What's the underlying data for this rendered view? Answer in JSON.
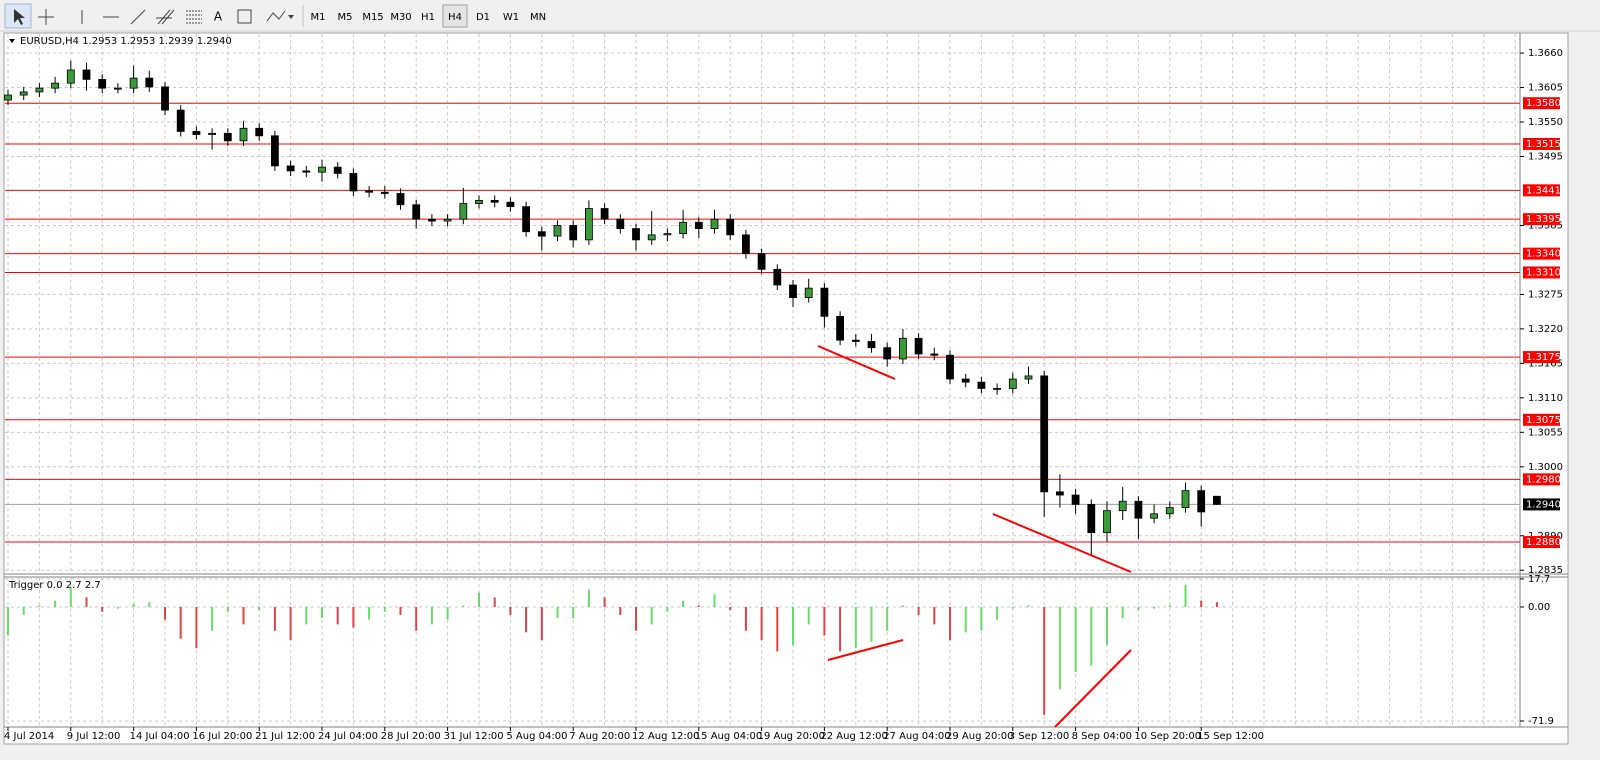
{
  "toolbar": {
    "timeframes": [
      "M1",
      "M5",
      "M15",
      "M30",
      "H1",
      "H4",
      "D1",
      "W1",
      "MN"
    ],
    "active": "H4"
  },
  "chart_data": [
    {
      "type": "candlestick",
      "title": "EURUSD,H4 1.2953 1.2953 1.2939 1.2940",
      "categories": [
        "4 Jul 2014",
        null,
        null,
        null,
        "9 Jul 12:00",
        null,
        null,
        null,
        "14 Jul 04:00",
        null,
        null,
        null,
        "16 Jul 20:00",
        null,
        null,
        null,
        "21 Jul 12:00",
        null,
        null,
        null,
        "24 Jul 04:00",
        null,
        null,
        null,
        "28 Jul 20:00",
        null,
        null,
        null,
        "31 Jul 12:00",
        null,
        null,
        null,
        "5 Aug 04:00",
        null,
        null,
        null,
        "7 Aug 20:00",
        null,
        null,
        null,
        "12 Aug 12:00",
        null,
        null,
        null,
        "15 Aug 04:00",
        null,
        null,
        null,
        "19 Aug 20:00",
        null,
        null,
        null,
        "22 Aug 12:00",
        null,
        null,
        null,
        "27 Aug 04:00",
        null,
        null,
        null,
        "29 Aug 20:00",
        null,
        null,
        null,
        "3 Sep 12:00",
        null,
        null,
        null,
        "8 Sep 04:00",
        null,
        null,
        null,
        "10 Sep 20:00",
        null,
        null,
        null,
        "15 Sep 12:00",
        null
      ],
      "open": [
        1.3585,
        1.3593,
        1.3598,
        1.3604,
        1.3612,
        1.3633,
        1.3618,
        1.3604,
        1.3604,
        1.362,
        1.3606,
        1.3569,
        1.3535,
        1.353,
        1.3532,
        1.352,
        1.354,
        1.3528,
        1.348,
        1.3472,
        1.347,
        1.3478,
        1.3468,
        1.344,
        1.3438,
        1.3436,
        1.3418,
        1.3395,
        1.3392,
        1.3395,
        1.342,
        1.3425,
        1.3422,
        1.3415,
        1.3375,
        1.3368,
        1.3385,
        1.3362,
        1.3412,
        1.3395,
        1.338,
        1.3362,
        1.337,
        1.3372,
        1.339,
        1.338,
        1.3395,
        1.337,
        1.334,
        1.3315,
        1.329,
        1.327,
        1.3285,
        1.324,
        1.3202,
        1.32,
        1.319,
        1.3172,
        1.3205,
        1.318,
        1.3178,
        1.314,
        1.3135,
        1.3125,
        1.3125,
        1.314,
        1.3145,
        1.296,
        1.2955,
        1.294,
        1.2895,
        1.293,
        1.2945,
        1.2918,
        1.2925,
        1.2935,
        1.2962,
        1.2953
      ],
      "high": [
        1.3601,
        1.3606,
        1.3612,
        1.3622,
        1.3648,
        1.3645,
        1.3626,
        1.3612,
        1.364,
        1.3632,
        1.3614,
        1.3577,
        1.3543,
        1.354,
        1.354,
        1.3552,
        1.3548,
        1.3536,
        1.3488,
        1.348,
        1.349,
        1.3486,
        1.3476,
        1.3448,
        1.3448,
        1.3444,
        1.3426,
        1.3403,
        1.3403,
        1.3445,
        1.3433,
        1.3433,
        1.343,
        1.3423,
        1.3383,
        1.3393,
        1.3393,
        1.3425,
        1.342,
        1.3403,
        1.3388,
        1.3408,
        1.338,
        1.341,
        1.3398,
        1.341,
        1.3403,
        1.3378,
        1.3348,
        1.3323,
        1.3298,
        1.33,
        1.3293,
        1.3248,
        1.3212,
        1.3212,
        1.3198,
        1.322,
        1.3213,
        1.319,
        1.3186,
        1.3148,
        1.3143,
        1.3133,
        1.315,
        1.316,
        1.3153,
        1.2988,
        1.2965,
        1.2948,
        1.2945,
        1.2968,
        1.2953,
        1.294,
        1.2945,
        1.2975,
        1.297,
        1.2953
      ],
      "low": [
        1.3577,
        1.3585,
        1.359,
        1.3596,
        1.3604,
        1.36,
        1.3596,
        1.3596,
        1.3596,
        1.3598,
        1.3561,
        1.3527,
        1.3522,
        1.3506,
        1.3512,
        1.3512,
        1.352,
        1.3472,
        1.3464,
        1.3462,
        1.3455,
        1.346,
        1.3432,
        1.343,
        1.3428,
        1.341,
        1.338,
        1.3384,
        1.3384,
        1.3387,
        1.3412,
        1.3414,
        1.3407,
        1.3367,
        1.3345,
        1.336,
        1.335,
        1.3354,
        1.3387,
        1.3372,
        1.3345,
        1.3354,
        1.336,
        1.3364,
        1.3365,
        1.3372,
        1.3362,
        1.3332,
        1.3307,
        1.3282,
        1.3255,
        1.3262,
        1.3222,
        1.3194,
        1.3192,
        1.3182,
        1.316,
        1.3164,
        1.3172,
        1.317,
        1.3132,
        1.3127,
        1.3117,
        1.3115,
        1.3117,
        1.3132,
        1.292,
        1.2935,
        1.2925,
        1.2858,
        1.288,
        1.2915,
        1.2885,
        1.291,
        1.2917,
        1.2927,
        1.2905,
        1.2939
      ],
      "close": [
        1.3593,
        1.3598,
        1.3604,
        1.3612,
        1.3633,
        1.3618,
        1.3604,
        1.3604,
        1.362,
        1.3606,
        1.3569,
        1.3535,
        1.353,
        1.3532,
        1.352,
        1.354,
        1.3528,
        1.348,
        1.3472,
        1.347,
        1.3478,
        1.3468,
        1.344,
        1.3438,
        1.3436,
        1.3418,
        1.3395,
        1.3392,
        1.3395,
        1.342,
        1.3425,
        1.3422,
        1.3415,
        1.3375,
        1.3368,
        1.3385,
        1.3362,
        1.3412,
        1.3395,
        1.338,
        1.3362,
        1.337,
        1.3372,
        1.339,
        1.338,
        1.3395,
        1.337,
        1.334,
        1.3315,
        1.329,
        1.327,
        1.3285,
        1.324,
        1.3202,
        1.32,
        1.319,
        1.3172,
        1.3205,
        1.318,
        1.3178,
        1.314,
        1.3135,
        1.3125,
        1.3125,
        1.314,
        1.3145,
        1.296,
        1.2955,
        1.294,
        1.2895,
        1.293,
        1.2945,
        1.2918,
        1.2925,
        1.2935,
        1.2962,
        1.2928,
        1.294
      ],
      "bull_color": "#3a9a3a",
      "bear_color": "#000000",
      "ylim": [
        1.2829,
        1.3692
      ],
      "yticks": [
        {
          "value": 1.366,
          "label": "1.3660"
        },
        {
          "value": 1.3605,
          "label": "1.3605"
        },
        {
          "value": 1.355,
          "label": "1.3550"
        },
        {
          "value": 1.3495,
          "label": "1.3495"
        },
        {
          "value": 1.3385,
          "label": "1.3385"
        },
        {
          "value": 1.3275,
          "label": "1.3275"
        },
        {
          "value": 1.322,
          "label": "1.3220"
        },
        {
          "value": 1.3165,
          "label": "1.3165"
        },
        {
          "value": 1.311,
          "label": "1.3110"
        },
        {
          "value": 1.3055,
          "label": "1.3055"
        },
        {
          "value": 1.3,
          "label": "1.3000"
        },
        {
          "value": 1.289,
          "label": "1.2890"
        },
        {
          "value": 1.2835,
          "label": "1.2835"
        }
      ],
      "levels": [
        {
          "value": 1.358,
          "label": "1.3580"
        },
        {
          "value": 1.3515,
          "label": "1.3515"
        },
        {
          "value": 1.3441,
          "label": "1.3441"
        },
        {
          "value": 1.3395,
          "label": "1.3395"
        },
        {
          "value": 1.334,
          "label": "1.3340"
        },
        {
          "value": 1.331,
          "label": "1.3310"
        },
        {
          "value": 1.3175,
          "label": "1.3175"
        },
        {
          "value": 1.3075,
          "label": "1.3075"
        },
        {
          "value": 1.298,
          "label": "1.2980"
        },
        {
          "value": 1.288,
          "label": "1.2880"
        }
      ],
      "level_color": "#ff0000",
      "last_price": {
        "value": 1.294,
        "label": "1.2940"
      },
      "grid": true
    },
    {
      "type": "bar",
      "title": "Trigger 0.0 2.7 2.7",
      "values": [
        -18,
        -5,
        1,
        4,
        12,
        6,
        -3,
        -1,
        2,
        3,
        -8,
        -20,
        -26,
        -15,
        -3,
        -11,
        -2,
        -15,
        -21,
        -11,
        -7,
        -11,
        -13,
        -8,
        -3,
        -5,
        -15,
        -11,
        -8,
        1,
        9,
        6,
        -5,
        -16,
        -21,
        -7,
        -7,
        11,
        6,
        -5,
        -15,
        -11,
        -3,
        4,
        1,
        8,
        -2,
        -15,
        -21,
        -28,
        -24,
        -11,
        -18,
        -28,
        -26,
        -22,
        -15,
        1,
        -5,
        -11,
        -21,
        -16,
        -15,
        -8,
        -1,
        1,
        -68,
        -52,
        -41,
        -37,
        -24,
        -7,
        -2,
        -1,
        1,
        14,
        4,
        3
      ],
      "up_color": "#66dd66",
      "down_color": "#dd4444",
      "ylim": [
        -75.7,
        18.9
      ],
      "yticks": [
        17.7,
        {
          "value": 0,
          "label": "0.00"
        },
        -71.9
      ],
      "grid": true
    }
  ]
}
